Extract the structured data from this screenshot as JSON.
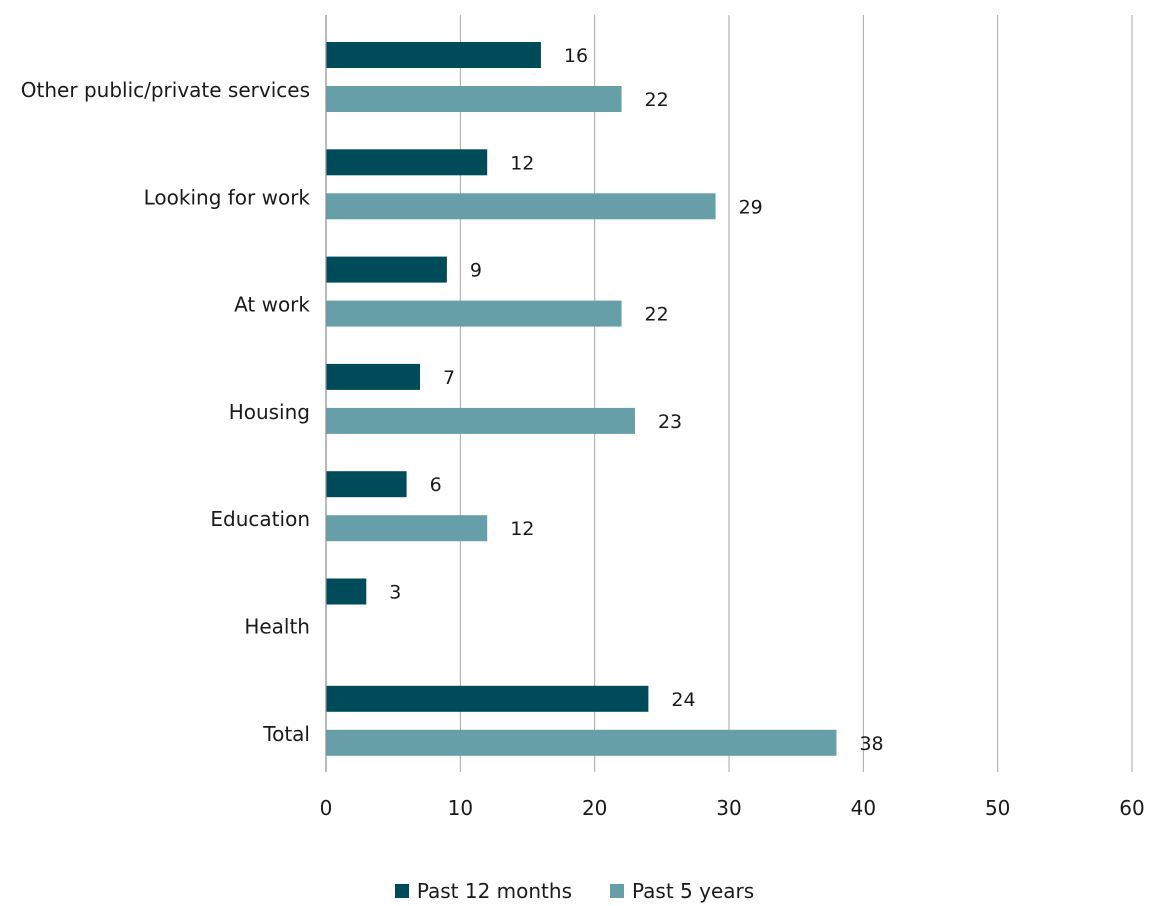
{
  "chart_data": {
    "type": "bar",
    "orientation": "horizontal",
    "categories": [
      "Other public/private services",
      "Looking for work",
      "At work",
      "Housing",
      "Education",
      "Health",
      "Total"
    ],
    "series": [
      {
        "name": "Past 12 months",
        "color": "#004B5A",
        "values": [
          16,
          12,
          9,
          7,
          6,
          3,
          24
        ]
      },
      {
        "name": "Past 5 years",
        "color": "#669FA8",
        "values": [
          22,
          29,
          22,
          23,
          12,
          null,
          38
        ]
      }
    ],
    "xlim": [
      0,
      60
    ],
    "xticks": [
      0,
      10,
      20,
      30,
      40,
      50,
      60
    ],
    "grid": true,
    "legend": "bottom-center"
  }
}
